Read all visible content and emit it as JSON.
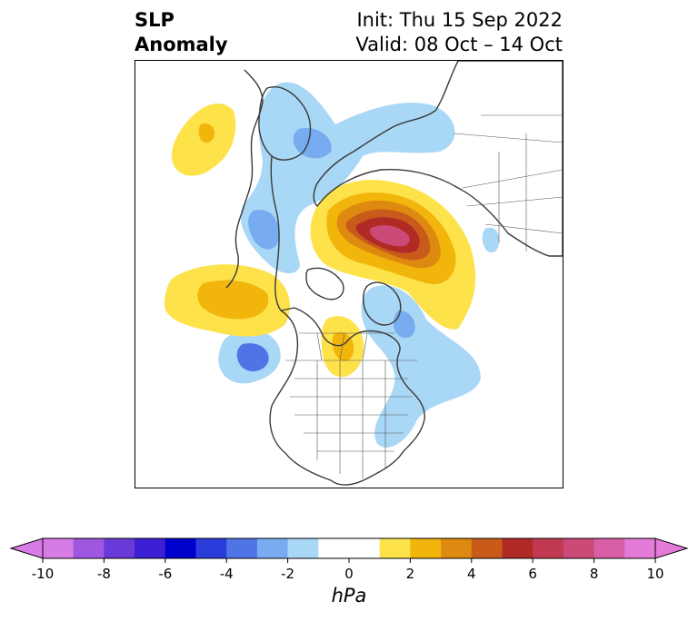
{
  "title": {
    "left_line1": "SLP",
    "left_line2": "Anomaly",
    "right_line1": "Init: Thu 15 Sep 2022",
    "right_line2": "Valid: 08 Oct – 14 Oct"
  },
  "colorbar": {
    "label": "hPa",
    "ticks": [
      "-10",
      "-8",
      "-6",
      "-4",
      "-2",
      "0",
      "2",
      "4",
      "6",
      "8",
      "10"
    ],
    "colors": [
      "#d77be6",
      "#9f56e0",
      "#6a3ad8",
      "#3a1fd3",
      "#0000cc",
      "#2a3ddb",
      "#4f74e6",
      "#78acf0",
      "#a9d7f6",
      "#ffffff",
      "#ffffff",
      "#fde24a",
      "#f2b50c",
      "#de8a10",
      "#c85a1a",
      "#b22a26",
      "#c23a52",
      "#cc4a78",
      "#d85fa5",
      "#e57bd8"
    ]
  },
  "colors": {
    "neg_light": "#a9d7f6",
    "neg_mid": "#78acf0",
    "neg_dark": "#4f74e6",
    "neg_darker": "#2a3ddb",
    "pos_light": "#fde24a",
    "pos_mid": "#f2b50c",
    "pos_dark": "#de8a10",
    "pos_darker": "#c85a1a",
    "pos_red": "#b22a26",
    "pos_rose": "#c23a52",
    "pos_pink": "#cc4a78",
    "coast": "#3a3a3a"
  }
}
